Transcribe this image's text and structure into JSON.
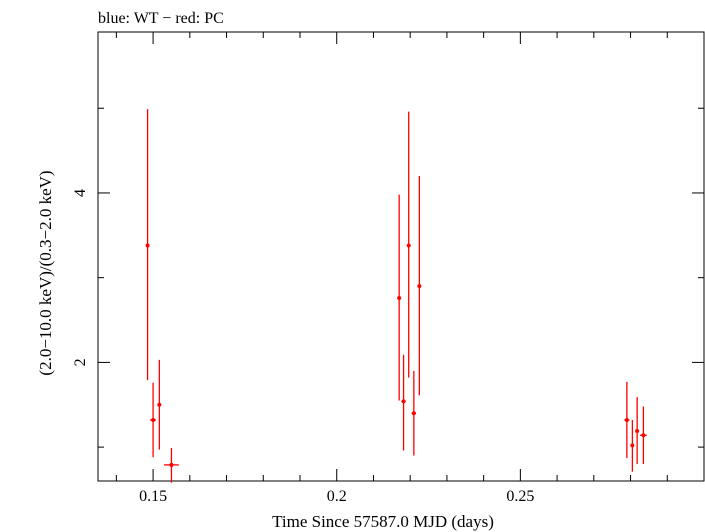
{
  "chart_data": {
    "type": "scatter",
    "title": "blue: WT − red: PC",
    "xlabel": "Time Since 57587.0 MJD (days)",
    "ylabel": "(2.0−10.0 keV)/(0.3−2.0 keV)",
    "xlim": [
      0.135,
      0.3
    ],
    "ylim": [
      0.6,
      5.9
    ],
    "x_ticks": [
      {
        "value": 0.15,
        "label": "0.15"
      },
      {
        "value": 0.2,
        "label": "0.2"
      },
      {
        "value": 0.25,
        "label": "0.25"
      }
    ],
    "x_minor_ticks": [
      0.14,
      0.16,
      0.17,
      0.18,
      0.19,
      0.21,
      0.22,
      0.23,
      0.24,
      0.26,
      0.27,
      0.28,
      0.29
    ],
    "y_ticks": [
      {
        "value": 2,
        "label": "2"
      },
      {
        "value": 4,
        "label": "4"
      }
    ],
    "y_minor_ticks": [
      1,
      3,
      5
    ],
    "grid": false,
    "series": [
      {
        "name": "PC",
        "color": "#ff0000",
        "points": [
          {
            "x": 0.1485,
            "y": 3.38,
            "xerr": 0.0003,
            "ylo": 1.79,
            "yhi": 4.99
          },
          {
            "x": 0.15,
            "y": 1.32,
            "xerr": 0.0008,
            "ylo": 0.88,
            "yhi": 1.76
          },
          {
            "x": 0.1517,
            "y": 1.5,
            "xerr": 0.0004,
            "ylo": 0.97,
            "yhi": 2.03
          },
          {
            "x": 0.155,
            "y": 0.79,
            "xerr": 0.002,
            "ylo": 0.58,
            "yhi": 0.99
          },
          {
            "x": 0.217,
            "y": 2.76,
            "xerr": 0.0003,
            "ylo": 1.55,
            "yhi": 3.98
          },
          {
            "x": 0.2182,
            "y": 1.54,
            "xerr": 0.0006,
            "ylo": 0.96,
            "yhi": 2.09
          },
          {
            "x": 0.2196,
            "y": 3.38,
            "xerr": 0.0003,
            "ylo": 1.82,
            "yhi": 4.96
          },
          {
            "x": 0.221,
            "y": 1.4,
            "xerr": 0.0006,
            "ylo": 0.9,
            "yhi": 1.9
          },
          {
            "x": 0.2225,
            "y": 2.9,
            "xerr": 0.0003,
            "ylo": 1.61,
            "yhi": 4.2
          },
          {
            "x": 0.279,
            "y": 1.32,
            "xerr": 0.0007,
            "ylo": 0.87,
            "yhi": 1.77
          },
          {
            "x": 0.2805,
            "y": 1.02,
            "xerr": 0.0004,
            "ylo": 0.71,
            "yhi": 1.32
          },
          {
            "x": 0.2818,
            "y": 1.19,
            "xerr": 0.0005,
            "ylo": 0.8,
            "yhi": 1.59
          },
          {
            "x": 0.2835,
            "y": 1.14,
            "xerr": 0.0009,
            "ylo": 0.8,
            "yhi": 1.48
          }
        ]
      }
    ]
  }
}
